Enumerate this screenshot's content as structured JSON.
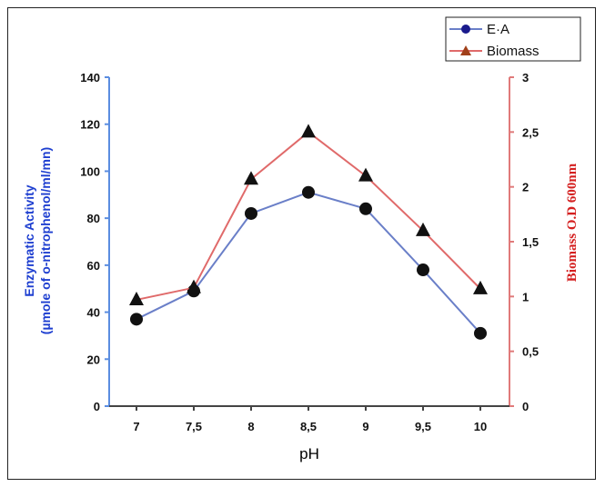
{
  "chart_data": {
    "type": "line",
    "x": [
      "7",
      "7,5",
      "8",
      "8,5",
      "9",
      "9,5",
      "10"
    ],
    "xlabel": "pH",
    "series": [
      {
        "name": "E·A",
        "axis": "left",
        "values": [
          37,
          49,
          82,
          91,
          84,
          58,
          31
        ],
        "line_color": "#6a7fc8",
        "marker": "circle",
        "marker_color": "#111111",
        "legend_marker_color": "#1a1a8c"
      },
      {
        "name": "Biomass",
        "axis": "right",
        "values": [
          0.97,
          1.08,
          2.07,
          2.5,
          2.1,
          1.6,
          1.07
        ],
        "line_color": "#e06a6a",
        "marker": "triangle",
        "marker_color": "#111111",
        "legend_marker_color": "#a0401a"
      }
    ],
    "y_left": {
      "label_line1": "Enzymatic Activity",
      "label_line2": "(µmole of  o-nitrophenol/ml/mn)",
      "ylim": [
        0,
        140
      ],
      "ticks": [
        0,
        20,
        40,
        60,
        80,
        100,
        120,
        140
      ],
      "tick_labels": [
        "0",
        "20",
        "40",
        "60",
        "80",
        "100",
        "120",
        "140"
      ],
      "axis_color": "#5b8de0",
      "label_color": "#1e3fd0"
    },
    "y_right": {
      "label": "Biomass O.D 600nm",
      "ylim": [
        0,
        3
      ],
      "ticks": [
        0,
        0.5,
        1,
        1.5,
        2,
        2.5,
        3
      ],
      "tick_labels": [
        "0",
        "0,5",
        "1",
        "1,5",
        "2",
        "2,5",
        "3"
      ],
      "axis_color": "#e07a7a",
      "label_color": "#d42020"
    },
    "legend_position": "top-right",
    "grid": false
  }
}
